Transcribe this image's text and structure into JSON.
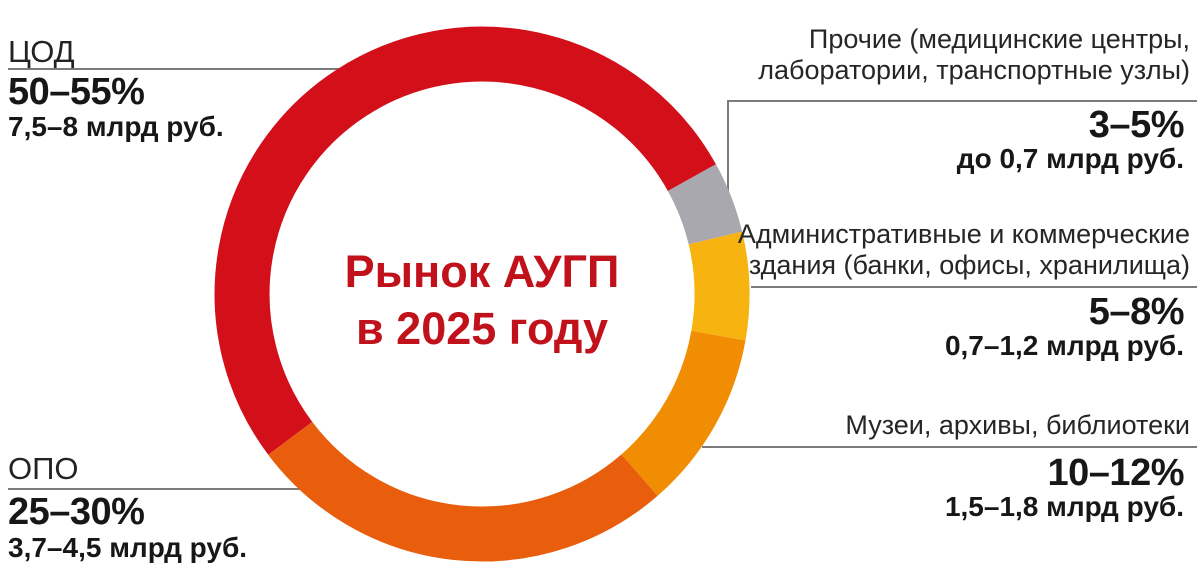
{
  "title": {
    "line1": "Рынок АУГП",
    "line2": "в 2025 году",
    "color": "#c1121b"
  },
  "chart_data": {
    "type": "pie",
    "variant": "donut",
    "title": "Рынок АУГП в 2025 году",
    "unit": "млрд руб.",
    "legend_position": "callouts",
    "segments": [
      {
        "id": "cod",
        "label": "ЦОД",
        "percent": "50–55%",
        "value": "7,5–8 млрд руб.",
        "share_pct_range": [
          50,
          55
        ],
        "value_bln_rub_range": [
          7.5,
          8
        ],
        "color": "#d3101a",
        "start_angle": 233,
        "end_angle": 421
      },
      {
        "id": "prochie",
        "label": "Прочие (медицинские центры, лаборатории, транспортные узлы)",
        "percent": "3–5%",
        "value": "до 0,7 млрд руб.",
        "share_pct_range": [
          3,
          5
        ],
        "value_bln_rub_range": [
          null,
          0.7
        ],
        "color": "#a8a8ae",
        "start_angle": 61,
        "end_angle": 76.5
      },
      {
        "id": "admin",
        "label": "Административные и коммерческие здания (банки, офисы, хранилища)",
        "percent": "5–8%",
        "value": "0,7–1,2 млрд руб.",
        "share_pct_range": [
          5,
          8
        ],
        "value_bln_rub_range": [
          0.7,
          1.2
        ],
        "color": "#f7b310",
        "start_angle": 76.5,
        "end_angle": 100
      },
      {
        "id": "muzei",
        "label": "Музеи, архивы, библиотеки",
        "percent": "10–12%",
        "value": "1,5–1,8 млрд руб.",
        "share_pct_range": [
          10,
          12
        ],
        "value_bln_rub_range": [
          1.5,
          1.8
        ],
        "color": "#f08d02",
        "start_angle": 100,
        "end_angle": 139
      },
      {
        "id": "opo",
        "label": "ОПО",
        "percent": "25–30%",
        "value": "3,7–4,5 млрд руб.",
        "share_pct_range": [
          25,
          30
        ],
        "value_bln_rub_range": [
          3.7,
          4.5
        ],
        "color": "#e85e0d",
        "start_angle": 139,
        "end_angle": 233
      }
    ]
  }
}
